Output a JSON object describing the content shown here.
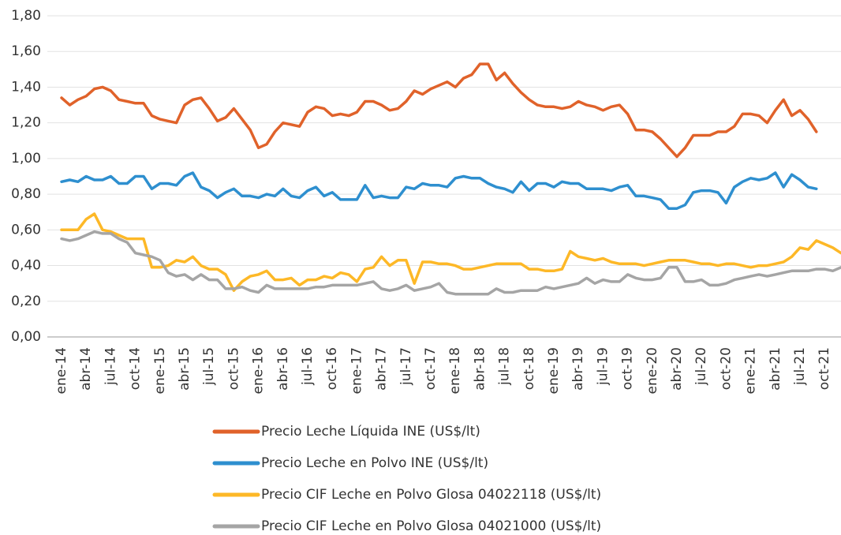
{
  "chart_data": {
    "type": "line",
    "categories": [
      "ene-14",
      null,
      null,
      "abr-14",
      null,
      null,
      "jul-14",
      null,
      null,
      "oct-14",
      null,
      null,
      "ene-15",
      null,
      null,
      "abr-15",
      null,
      null,
      "jul-15",
      null,
      null,
      "oct-15",
      null,
      null,
      "ene-16",
      null,
      null,
      "abr-16",
      null,
      null,
      "jul-16",
      null,
      null,
      "oct-16",
      null,
      null,
      "ene-17",
      null,
      null,
      "abr-17",
      null,
      null,
      "jul-17",
      null,
      null,
      "oct-17",
      null,
      null,
      "ene-18",
      null,
      null,
      "abr-18",
      null,
      null,
      "jul-18",
      null,
      null,
      "oct-18",
      null,
      null,
      "ene-19",
      null,
      null,
      "abr-19",
      null,
      null,
      "jul-19",
      null,
      null,
      "oct-19",
      null,
      null,
      "ene-20",
      null,
      null,
      "abr-20",
      null,
      null,
      "jul-20",
      null,
      null,
      "oct-20",
      null,
      null,
      "ene-21",
      null,
      null,
      "abr-21",
      null,
      null,
      "jul-21",
      null,
      null,
      "oct-21",
      null,
      null
    ],
    "series": [
      {
        "name": "Precio Leche Líquida INE (US$/lt)",
        "color": "#e0622a",
        "values": [
          1.34,
          1.3,
          1.33,
          1.35,
          1.39,
          1.4,
          1.38,
          1.33,
          1.32,
          1.31,
          1.31,
          1.24,
          1.22,
          1.21,
          1.2,
          1.3,
          1.33,
          1.34,
          1.28,
          1.21,
          1.23,
          1.28,
          1.22,
          1.16,
          1.06,
          1.08,
          1.15,
          1.2,
          1.19,
          1.18,
          1.26,
          1.29,
          1.28,
          1.24,
          1.25,
          1.24,
          1.26,
          1.32,
          1.32,
          1.3,
          1.27,
          1.28,
          1.32,
          1.38,
          1.36,
          1.39,
          1.41,
          1.43,
          1.4,
          1.45,
          1.47,
          1.53,
          1.53,
          1.44,
          1.48,
          1.42,
          1.37,
          1.33,
          1.3,
          1.29,
          1.29,
          1.28,
          1.29,
          1.32,
          1.3,
          1.29,
          1.27,
          1.29,
          1.3,
          1.25,
          1.16,
          1.16,
          1.15,
          1.11,
          1.06,
          1.01,
          1.06,
          1.13,
          1.13,
          1.13,
          1.15,
          1.15,
          1.18,
          1.25,
          1.25,
          1.24,
          1.2,
          1.27,
          1.33,
          1.24,
          1.27,
          1.22,
          1.15,
          null,
          null,
          null
        ]
      },
      {
        "name": "Precio Leche en Polvo INE (US$/lt)",
        "color": "#2e8fcf",
        "values": [
          0.87,
          0.88,
          0.87,
          0.9,
          0.88,
          0.88,
          0.9,
          0.86,
          0.86,
          0.9,
          0.9,
          0.83,
          0.86,
          0.86,
          0.85,
          0.9,
          0.92,
          0.84,
          0.82,
          0.78,
          0.81,
          0.83,
          0.79,
          0.79,
          0.78,
          0.8,
          0.79,
          0.83,
          0.79,
          0.78,
          0.82,
          0.84,
          0.79,
          0.81,
          0.77,
          0.77,
          0.77,
          0.85,
          0.78,
          0.79,
          0.78,
          0.78,
          0.84,
          0.83,
          0.86,
          0.85,
          0.85,
          0.84,
          0.89,
          0.9,
          0.89,
          0.89,
          0.86,
          0.84,
          0.83,
          0.81,
          0.87,
          0.82,
          0.86,
          0.86,
          0.84,
          0.87,
          0.86,
          0.86,
          0.83,
          0.83,
          0.83,
          0.82,
          0.84,
          0.85,
          0.79,
          0.79,
          0.78,
          0.77,
          0.72,
          0.72,
          0.74,
          0.81,
          0.82,
          0.82,
          0.81,
          0.75,
          0.84,
          0.87,
          0.89,
          0.88,
          0.89,
          0.92,
          0.84,
          0.91,
          0.88,
          0.84,
          0.83,
          null,
          null,
          null
        ]
      },
      {
        "name": "Precio CIF Leche en Polvo Glosa 04022118 (US$/lt)",
        "color": "#fdb827",
        "values": [
          0.6,
          0.6,
          0.6,
          0.66,
          0.69,
          0.6,
          0.59,
          0.57,
          0.55,
          0.55,
          0.55,
          0.39,
          0.39,
          0.4,
          0.43,
          0.42,
          0.45,
          0.4,
          0.38,
          0.38,
          0.35,
          0.26,
          0.31,
          0.34,
          0.35,
          0.37,
          0.32,
          0.32,
          0.33,
          0.29,
          0.32,
          0.32,
          0.34,
          0.33,
          0.36,
          0.35,
          0.31,
          0.38,
          0.39,
          0.45,
          0.4,
          0.43,
          0.43,
          0.3,
          0.42,
          0.42,
          0.41,
          0.41,
          0.4,
          0.38,
          0.38,
          0.39,
          0.4,
          0.41,
          0.41,
          0.41,
          0.41,
          0.38,
          0.38,
          0.37,
          0.37,
          0.38,
          0.48,
          0.45,
          0.44,
          0.43,
          0.44,
          0.42,
          0.41,
          0.41,
          0.41,
          0.4,
          0.41,
          0.42,
          0.43,
          0.43,
          0.43,
          0.42,
          0.41,
          0.41,
          0.4,
          0.41,
          0.41,
          0.4,
          0.39,
          0.4,
          0.4,
          0.41,
          0.42,
          0.45,
          0.5,
          0.49,
          0.54,
          0.52,
          0.5,
          0.47
        ]
      },
      {
        "name": "Precio CIF Leche en Polvo Glosa 04021000 (US$/lt)",
        "color": "#a5a5a5",
        "values": [
          0.55,
          0.54,
          0.55,
          0.57,
          0.59,
          0.58,
          0.58,
          0.55,
          0.53,
          0.47,
          0.46,
          0.45,
          0.43,
          0.36,
          0.34,
          0.35,
          0.32,
          0.35,
          0.32,
          0.32,
          0.27,
          0.27,
          0.28,
          0.26,
          0.25,
          0.29,
          0.27,
          0.27,
          0.27,
          0.27,
          0.27,
          0.28,
          0.28,
          0.29,
          0.29,
          0.29,
          0.29,
          0.3,
          0.31,
          0.27,
          0.26,
          0.27,
          0.29,
          0.26,
          0.27,
          0.28,
          0.3,
          0.25,
          0.24,
          0.24,
          0.24,
          0.24,
          0.24,
          0.27,
          0.25,
          0.25,
          0.26,
          0.26,
          0.26,
          0.28,
          0.27,
          0.28,
          0.29,
          0.3,
          0.33,
          0.3,
          0.32,
          0.31,
          0.31,
          0.35,
          0.33,
          0.32,
          0.32,
          0.33,
          0.39,
          0.39,
          0.31,
          0.31,
          0.32,
          0.29,
          0.29,
          0.3,
          0.32,
          0.33,
          0.34,
          0.35,
          0.34,
          0.35,
          0.36,
          0.37,
          0.37,
          0.37,
          0.38,
          0.38,
          0.37,
          0.39
        ]
      }
    ],
    "ylim": [
      0,
      1.8
    ],
    "yticks": [
      {
        "value": 0,
        "label": "0,00"
      },
      {
        "value": 0.2,
        "label": "0,20"
      },
      {
        "value": 0.4,
        "label": "0,40"
      },
      {
        "value": 0.6,
        "label": "0,60"
      },
      {
        "value": 0.8,
        "label": "0,80"
      },
      {
        "value": 1.0,
        "label": "1,00"
      },
      {
        "value": 1.2,
        "label": "1,20"
      },
      {
        "value": 1.4,
        "label": "1,40"
      },
      {
        "value": 1.6,
        "label": "1,60"
      },
      {
        "value": 1.8,
        "label": "1,80"
      }
    ],
    "grid": true,
    "legend": "bottom"
  }
}
